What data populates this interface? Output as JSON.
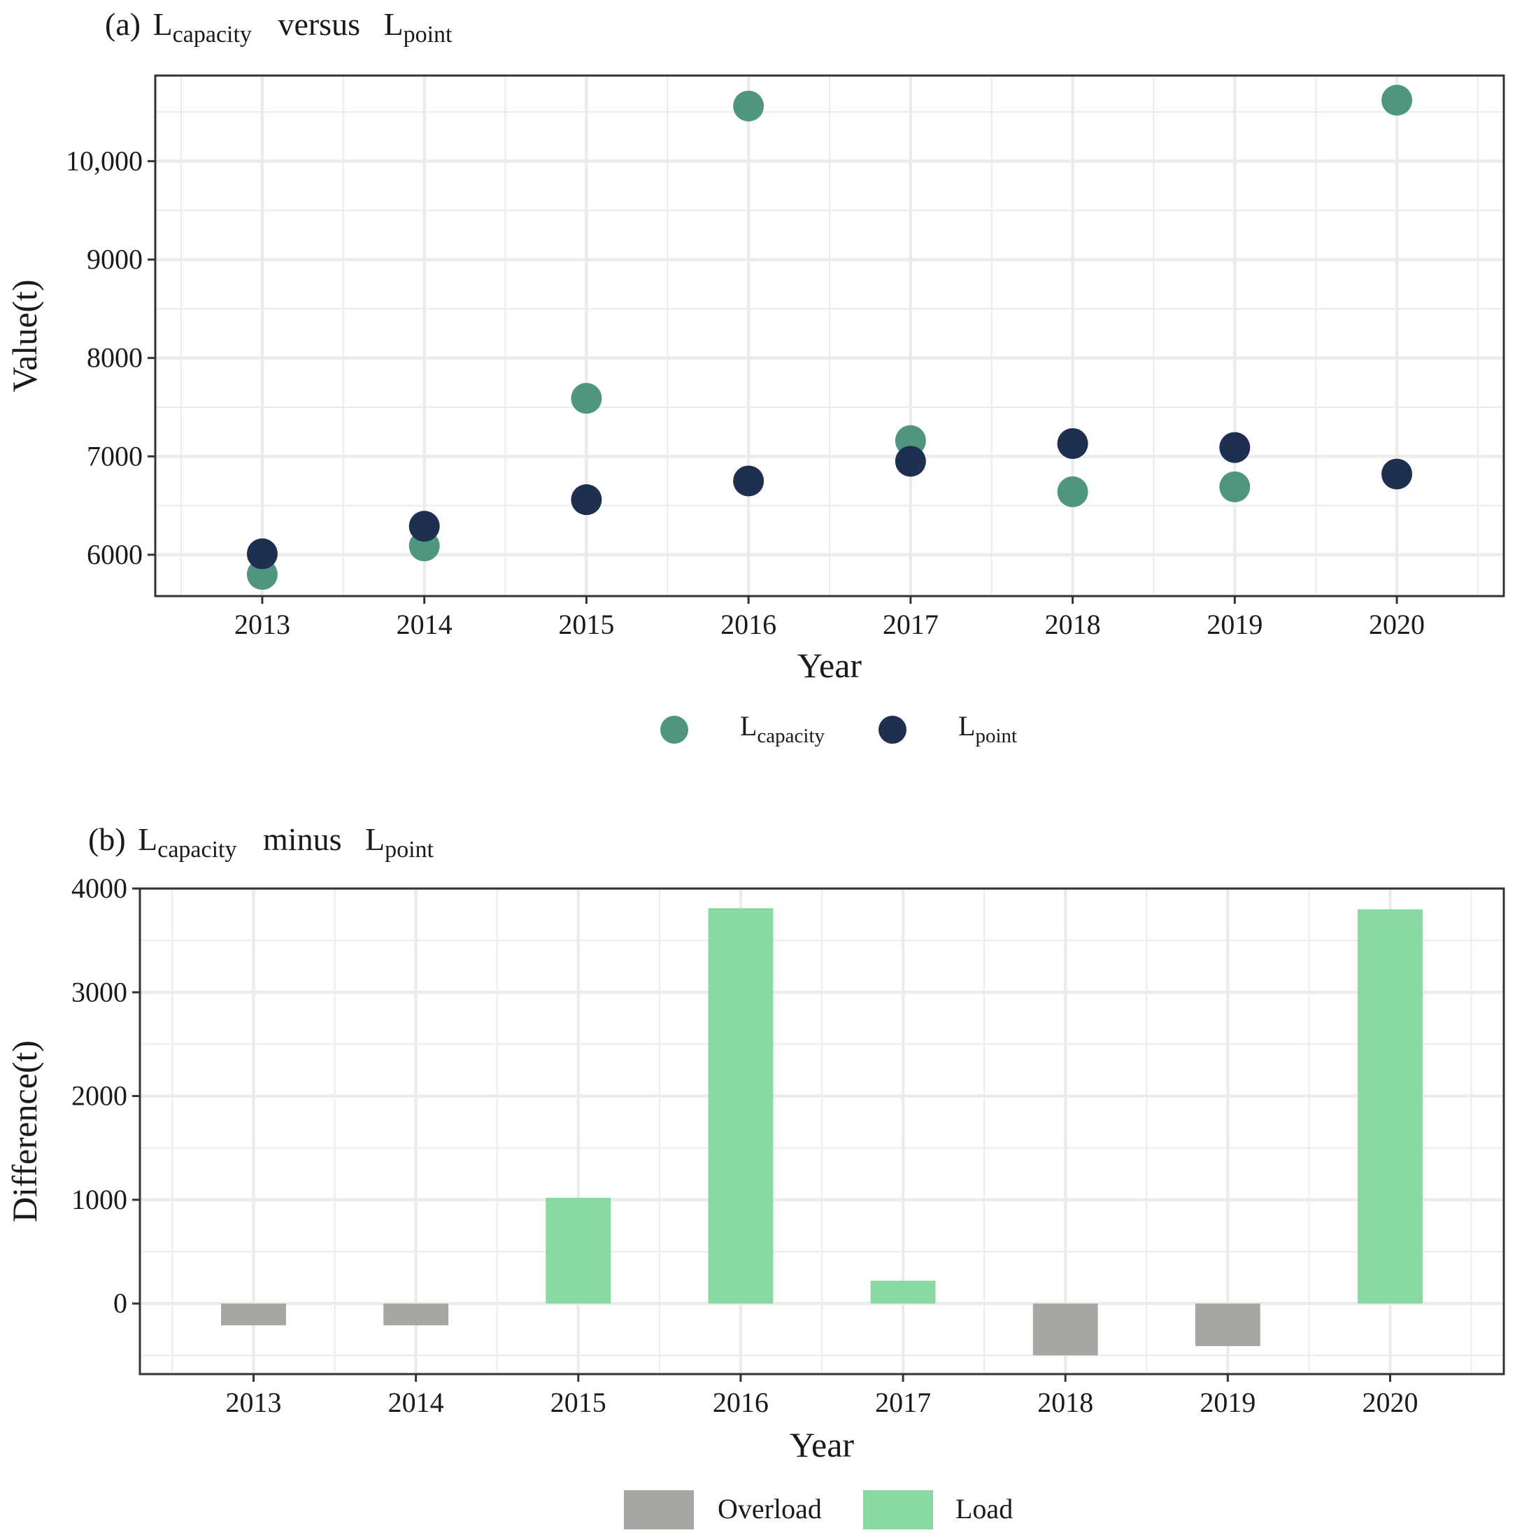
{
  "colors": {
    "capacity": "#4f957f",
    "point": "#1f2f50",
    "overload": "#a6a6a2",
    "load": "#87d9a1",
    "grid": "#ebebeb",
    "frame": "#333333"
  },
  "chart_data": [
    {
      "type": "scatter",
      "title": {
        "prefix": "(a)",
        "left": {
          "base": "L",
          "sub": "capacity"
        },
        "joiner": "versus",
        "right": {
          "base": "L",
          "sub": "point"
        }
      },
      "xlabel": "Year",
      "ylabel": "Value(t)",
      "categories": [
        "2013",
        "2014",
        "2015",
        "2016",
        "2017",
        "2018",
        "2019",
        "2020"
      ],
      "ylim": [
        5580,
        10870
      ],
      "yticks": [
        {
          "value": 6000,
          "label": "6000"
        },
        {
          "value": 7000,
          "label": "7000"
        },
        {
          "value": 8000,
          "label": "8000"
        },
        {
          "value": 9000,
          "label": "9000"
        },
        {
          "value": 10000,
          "label": "10,000"
        }
      ],
      "series": [
        {
          "name": "capacity",
          "legend": {
            "base": "L",
            "sub": "capacity"
          },
          "values": [
            5800,
            6090,
            7590,
            10560,
            7160,
            6640,
            6690,
            10620
          ]
        },
        {
          "name": "point",
          "legend": {
            "base": "L",
            "sub": "point"
          },
          "values": [
            6010,
            6290,
            6560,
            6750,
            6950,
            7130,
            7090,
            6820
          ]
        }
      ],
      "legend_position": "bottom"
    },
    {
      "type": "bar",
      "title": {
        "prefix": "(b)",
        "left": {
          "base": "L",
          "sub": "capacity"
        },
        "joiner": "minus",
        "right": {
          "base": "L",
          "sub": "point"
        }
      },
      "xlabel": "Year",
      "ylabel": "Difference(t)",
      "categories": [
        "2013",
        "2014",
        "2015",
        "2016",
        "2017",
        "2018",
        "2019",
        "2020"
      ],
      "ylim": [
        -680,
        4000
      ],
      "yticks": [
        {
          "value": 0,
          "label": "0"
        },
        {
          "value": 1000,
          "label": "1000"
        },
        {
          "value": 2000,
          "label": "2000"
        },
        {
          "value": 3000,
          "label": "3000"
        },
        {
          "value": 4000,
          "label": "4000"
        }
      ],
      "values": [
        -210,
        -210,
        1020,
        3810,
        220,
        -500,
        -410,
        3800
      ],
      "legend": [
        {
          "key": "overload",
          "label": "Overload"
        },
        {
          "key": "load",
          "label": "Load"
        }
      ],
      "legend_position": "bottom"
    }
  ]
}
